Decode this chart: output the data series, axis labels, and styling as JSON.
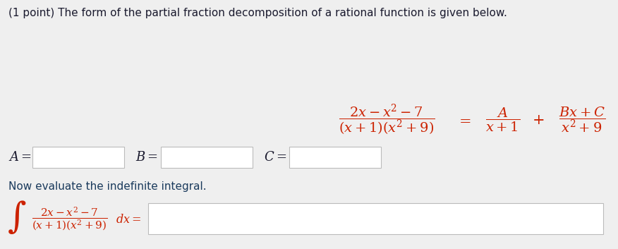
{
  "bg_color": "#efefef",
  "text_color": "#1a1a2e",
  "red_color": "#cc2200",
  "blue_text": "#1a3a5c",
  "title_text": "(1 point) The form of the partial fraction decomposition of a rational function is given below.",
  "box_color": "#ffffff",
  "box_edge_color": "#bbbbbb",
  "fig_width": 8.76,
  "fig_height": 3.53,
  "dpi": 100
}
